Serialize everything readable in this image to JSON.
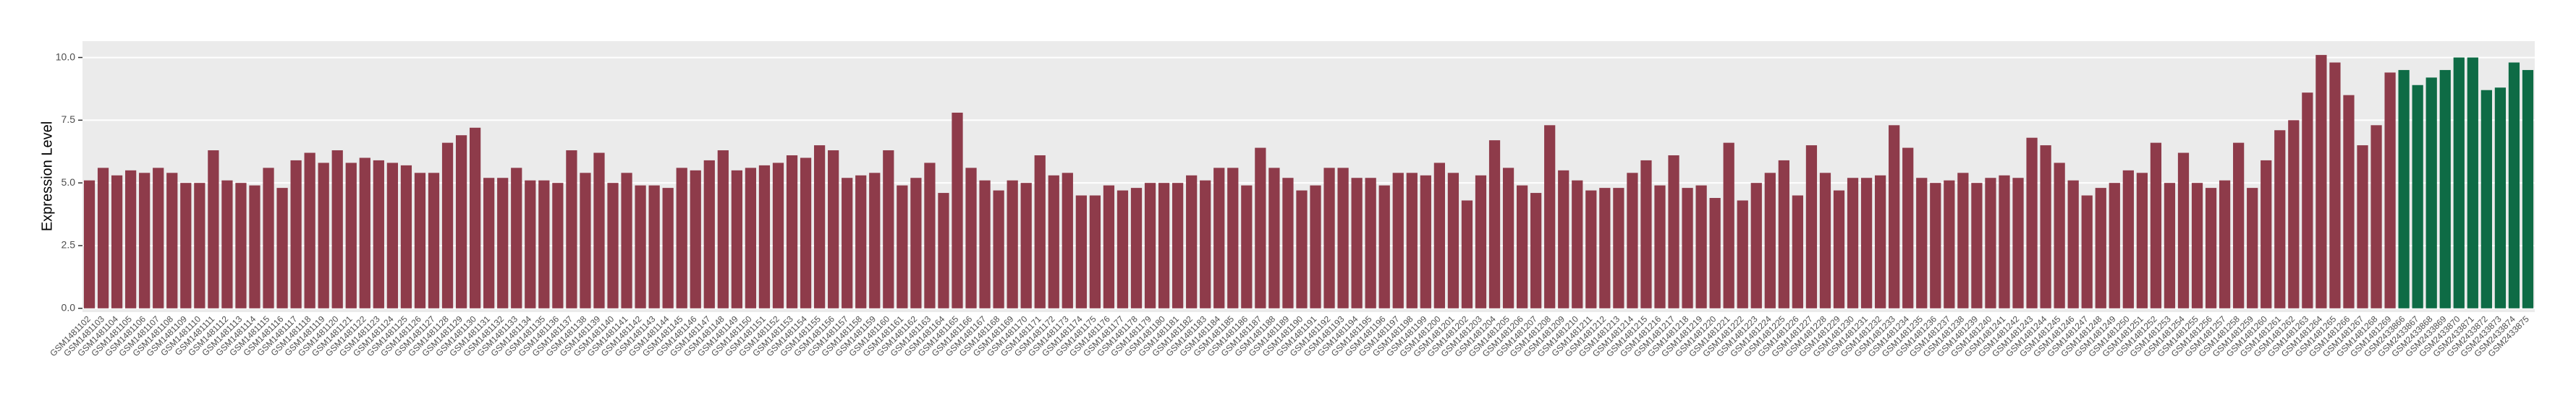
{
  "chart_data": {
    "type": "bar",
    "y_label": "Expression Level",
    "categories": [
      "GSM1481102",
      "GSM1481103",
      "GSM1481104",
      "GSM1481105",
      "GSM1481106",
      "GSM1481107",
      "GSM1481108",
      "GSM1481109",
      "GSM1481110",
      "GSM1481111",
      "GSM1481112",
      "GSM1481113",
      "GSM1481114",
      "GSM1481115",
      "GSM1481116",
      "GSM1481117",
      "GSM1481118",
      "GSM1481119",
      "GSM1481120",
      "GSM1481121",
      "GSM1481122",
      "GSM1481123",
      "GSM1481124",
      "GSM1481125",
      "GSM1481126",
      "GSM1481127",
      "GSM1481128",
      "GSM1481129",
      "GSM1481130",
      "GSM1481131",
      "GSM1481132",
      "GSM1481133",
      "GSM1481134",
      "GSM1481135",
      "GSM1481136",
      "GSM1481137",
      "GSM1481138",
      "GSM1481139",
      "GSM1481140",
      "GSM1481141",
      "GSM1481142",
      "GSM1481143",
      "GSM1481144",
      "GSM1481145",
      "GSM1481146",
      "GSM1481147",
      "GSM1481148",
      "GSM1481149",
      "GSM1481150",
      "GSM1481151",
      "GSM1481152",
      "GSM1481153",
      "GSM1481154",
      "GSM1481155",
      "GSM1481156",
      "GSM1481157",
      "GSM1481158",
      "GSM1481159",
      "GSM1481160",
      "GSM1481161",
      "GSM1481162",
      "GSM1481163",
      "GSM1481164",
      "GSM1481165",
      "GSM1481166",
      "GSM1481167",
      "GSM1481168",
      "GSM1481169",
      "GSM1481170",
      "GSM1481171",
      "GSM1481172",
      "GSM1481173",
      "GSM1481174",
      "GSM1481175",
      "GSM1481176",
      "GSM1481177",
      "GSM1481178",
      "GSM1481179",
      "GSM1481180",
      "GSM1481181",
      "GSM1481182",
      "GSM1481183",
      "GSM1481184",
      "GSM1481185",
      "GSM1481186",
      "GSM1481187",
      "GSM1481188",
      "GSM1481189",
      "GSM1481190",
      "GSM1481191",
      "GSM1481192",
      "GSM1481193",
      "GSM1481194",
      "GSM1481195",
      "GSM1481196",
      "GSM1481197",
      "GSM1481198",
      "GSM1481199",
      "GSM1481200",
      "GSM1481201",
      "GSM1481202",
      "GSM1481203",
      "GSM1481204",
      "GSM1481205",
      "GSM1481206",
      "GSM1481207",
      "GSM1481208",
      "GSM1481209",
      "GSM1481210",
      "GSM1481211",
      "GSM1481212",
      "GSM1481213",
      "GSM1481214",
      "GSM1481215",
      "GSM1481216",
      "GSM1481217",
      "GSM1481218",
      "GSM1481219",
      "GSM1481220",
      "GSM1481221",
      "GSM1481222",
      "GSM1481223",
      "GSM1481224",
      "GSM1481225",
      "GSM1481226",
      "GSM1481227",
      "GSM1481228",
      "GSM1481229",
      "GSM1481230",
      "GSM1481231",
      "GSM1481232",
      "GSM1481233",
      "GSM1481234",
      "GSM1481235",
      "GSM1481236",
      "GSM1481237",
      "GSM1481238",
      "GSM1481239",
      "GSM1481240",
      "GSM1481241",
      "GSM1481242",
      "GSM1481243",
      "GSM1481244",
      "GSM1481245",
      "GSM1481246",
      "GSM1481247",
      "GSM1481248",
      "GSM1481249",
      "GSM1481250",
      "GSM1481251",
      "GSM1481252",
      "GSM1481253",
      "GSM1481254",
      "GSM1481255",
      "GSM1481256",
      "GSM1481257",
      "GSM1481258",
      "GSM1481259",
      "GSM1481260",
      "GSM1481261",
      "GSM1481262",
      "GSM1481263",
      "GSM1481264",
      "GSM1481265",
      "GSM1481266",
      "GSM1481267",
      "GSM1481268",
      "GSM1481269",
      "GSM2433866",
      "GSM2433867",
      "GSM2433868",
      "GSM2433869",
      "GSM2433870",
      "GSM2433871",
      "GSM2433872",
      "GSM2433873",
      "GSM2433874",
      "GSM2433875"
    ],
    "values": [
      5.1,
      5.6,
      5.3,
      5.5,
      5.4,
      5.6,
      5.4,
      5.0,
      5.0,
      6.3,
      5.1,
      5.0,
      4.9,
      5.6,
      4.8,
      5.9,
      6.2,
      5.8,
      6.3,
      5.8,
      6.0,
      5.9,
      5.8,
      5.7,
      5.4,
      5.4,
      6.6,
      6.9,
      7.2,
      5.2,
      5.2,
      5.6,
      5.1,
      5.1,
      5.0,
      6.3,
      5.4,
      6.2,
      5.0,
      5.4,
      4.9,
      4.9,
      4.8,
      5.6,
      5.5,
      5.9,
      6.3,
      5.5,
      5.6,
      5.7,
      5.8,
      6.1,
      6.0,
      6.5,
      6.3,
      5.2,
      5.3,
      5.4,
      6.3,
      4.9,
      5.2,
      5.8,
      4.6,
      7.8,
      5.6,
      5.1,
      4.7,
      5.1,
      5.0,
      6.1,
      5.3,
      5.4,
      4.5,
      4.5,
      4.9,
      4.7,
      4.8,
      5.0,
      5.0,
      5.0,
      5.3,
      5.1,
      5.6,
      5.6,
      4.9,
      6.4,
      5.6,
      5.2,
      4.7,
      4.9,
      5.6,
      5.6,
      5.2,
      5.2,
      4.9,
      5.4,
      5.4,
      5.3,
      5.8,
      5.4,
      4.3,
      5.3,
      6.7,
      5.6,
      4.9,
      4.6,
      7.3,
      5.5,
      5.1,
      4.7,
      4.8,
      4.8,
      5.4,
      5.9,
      4.9,
      6.1,
      4.8,
      4.9,
      4.4,
      6.6,
      4.3,
      5.0,
      5.4,
      5.9,
      4.5,
      6.5,
      5.4,
      4.7,
      5.2,
      5.2,
      5.3,
      7.3,
      6.4,
      5.2,
      5.0,
      5.1,
      5.4,
      5.0,
      5.2,
      5.3,
      5.2,
      6.8,
      6.5,
      5.8,
      5.1,
      4.5,
      4.8,
      5.0,
      5.5,
      5.4,
      6.6,
      5.0,
      6.2,
      5.0,
      4.8,
      5.1,
      6.6,
      4.8,
      5.9,
      7.1,
      7.5,
      8.6,
      10.1,
      9.8,
      8.5,
      6.5,
      7.3,
      9.4,
      9.5,
      8.9,
      9.2,
      9.5,
      10.0,
      10.0,
      8.7,
      8.8,
      9.8,
      9.5
    ],
    "colors": [
      "#8e3b4a",
      "#8e3b4a",
      "#8e3b4a",
      "#8e3b4a",
      "#8e3b4a",
      "#8e3b4a",
      "#8e3b4a",
      "#8e3b4a",
      "#8e3b4a",
      "#8e3b4a",
      "#8e3b4a",
      "#8e3b4a",
      "#8e3b4a",
      "#8e3b4a",
      "#8e3b4a",
      "#8e3b4a",
      "#8e3b4a",
      "#8e3b4a",
      "#8e3b4a",
      "#8e3b4a",
      "#8e3b4a",
      "#8e3b4a",
      "#8e3b4a",
      "#8e3b4a",
      "#8e3b4a",
      "#8e3b4a",
      "#8e3b4a",
      "#8e3b4a",
      "#8e3b4a",
      "#8e3b4a",
      "#8e3b4a",
      "#8e3b4a",
      "#8e3b4a",
      "#8e3b4a",
      "#8e3b4a",
      "#8e3b4a",
      "#8e3b4a",
      "#8e3b4a",
      "#8e3b4a",
      "#8e3b4a",
      "#8e3b4a",
      "#8e3b4a",
      "#8e3b4a",
      "#8e3b4a",
      "#8e3b4a",
      "#8e3b4a",
      "#8e3b4a",
      "#8e3b4a",
      "#8e3b4a",
      "#8e3b4a",
      "#8e3b4a",
      "#8e3b4a",
      "#8e3b4a",
      "#8e3b4a",
      "#8e3b4a",
      "#8e3b4a",
      "#8e3b4a",
      "#8e3b4a",
      "#8e3b4a",
      "#8e3b4a",
      "#8e3b4a",
      "#8e3b4a",
      "#8e3b4a",
      "#8e3b4a",
      "#8e3b4a",
      "#8e3b4a",
      "#8e3b4a",
      "#8e3b4a",
      "#8e3b4a",
      "#8e3b4a",
      "#8e3b4a",
      "#8e3b4a",
      "#8e3b4a",
      "#8e3b4a",
      "#8e3b4a",
      "#8e3b4a",
      "#8e3b4a",
      "#8e3b4a",
      "#8e3b4a",
      "#8e3b4a",
      "#8e3b4a",
      "#8e3b4a",
      "#8e3b4a",
      "#8e3b4a",
      "#8e3b4a",
      "#8e3b4a",
      "#8e3b4a",
      "#8e3b4a",
      "#8e3b4a",
      "#8e3b4a",
      "#8e3b4a",
      "#8e3b4a",
      "#8e3b4a",
      "#8e3b4a",
      "#8e3b4a",
      "#8e3b4a",
      "#8e3b4a",
      "#8e3b4a",
      "#8e3b4a",
      "#8e3b4a",
      "#8e3b4a",
      "#8e3b4a",
      "#8e3b4a",
      "#8e3b4a",
      "#8e3b4a",
      "#8e3b4a",
      "#8e3b4a",
      "#8e3b4a",
      "#8e3b4a",
      "#8e3b4a",
      "#8e3b4a",
      "#8e3b4a",
      "#8e3b4a",
      "#8e3b4a",
      "#8e3b4a",
      "#8e3b4a",
      "#8e3b4a",
      "#8e3b4a",
      "#8e3b4a",
      "#8e3b4a",
      "#8e3b4a",
      "#8e3b4a",
      "#8e3b4a",
      "#8e3b4a",
      "#8e3b4a",
      "#8e3b4a",
      "#8e3b4a",
      "#8e3b4a",
      "#8e3b4a",
      "#8e3b4a",
      "#8e3b4a",
      "#8e3b4a",
      "#8e3b4a",
      "#8e3b4a",
      "#8e3b4a",
      "#8e3b4a",
      "#8e3b4a",
      "#8e3b4a",
      "#8e3b4a",
      "#8e3b4a",
      "#8e3b4a",
      "#8e3b4a",
      "#8e3b4a",
      "#8e3b4a",
      "#8e3b4a",
      "#8e3b4a",
      "#8e3b4a",
      "#8e3b4a",
      "#8e3b4a",
      "#8e3b4a",
      "#8e3b4a",
      "#8e3b4a",
      "#8e3b4a",
      "#8e3b4a",
      "#8e3b4a",
      "#8e3b4a",
      "#8e3b4a",
      "#8e3b4a",
      "#8e3b4a",
      "#8e3b4a",
      "#8e3b4a",
      "#8e3b4a",
      "#8e3b4a",
      "#8e3b4a",
      "#8e3b4a",
      "#8e3b4a",
      "#8e3b4a",
      "#8e3b4a",
      "#0e6b45",
      "#0e6b45",
      "#0e6b45",
      "#0e6b45",
      "#0e6b45",
      "#0e6b45",
      "#0e6b45",
      "#0e6b45",
      "#0e6b45",
      "#0e6b45"
    ],
    "ylim": [
      -0.15,
      10.65
    ],
    "yticks": [
      {
        "value": 0,
        "label": "0.0"
      },
      {
        "value": 2.5,
        "label": "2.5"
      },
      {
        "value": 5,
        "label": "5.0"
      },
      {
        "value": 7.5,
        "label": "7.5"
      },
      {
        "value": 10,
        "label": "10.0"
      }
    ],
    "grid": true
  }
}
